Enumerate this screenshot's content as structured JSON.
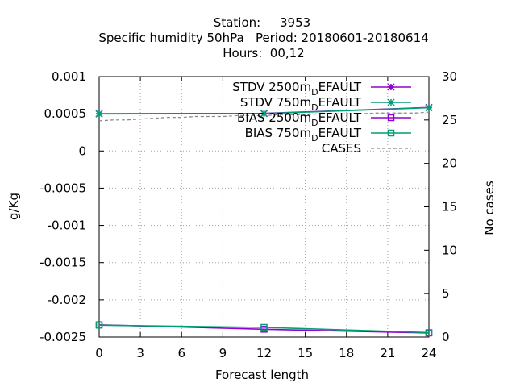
{
  "chart_data": {
    "type": "line",
    "title_lines": [
      "Station:     3953",
      "Specific humidity 50hPa   Period: 20180601-20180614",
      "Hours:  00,12"
    ],
    "xlabel": "Forecast length",
    "ylabel": "g/Kg",
    "y2label": "No cases",
    "xlim": [
      0,
      24
    ],
    "ylim": [
      -0.0025,
      0.001
    ],
    "y2lim": [
      0,
      30
    ],
    "xticks": [
      "0",
      "3",
      "6",
      "9",
      "12",
      "15",
      "18",
      "21",
      "24"
    ],
    "yticks": [
      "0.001",
      "0.0005",
      "0",
      "-0.0005",
      "-0.001",
      "-0.0015",
      "-0.002",
      "-0.0025"
    ],
    "y2ticks": [
      "30",
      "25",
      "20",
      "15",
      "10",
      "5",
      "0"
    ],
    "grid": true,
    "legend_position": "top-right",
    "series": [
      {
        "name": "STDV 2500m_DEFAULT",
        "legend_main": "STDV 2500m",
        "legend_sub": "D",
        "legend_rest": "EFAULT",
        "color": "#9400d3",
        "marker": "star",
        "axis": "y",
        "x": [
          0,
          12,
          24
        ],
        "y": [
          0.000501,
          0.000505,
          0.000585
        ]
      },
      {
        "name": "STDV 750m_DEFAULT",
        "legend_main": "STDV 750m",
        "legend_sub": "D",
        "legend_rest": "EFAULT",
        "color": "#009e73",
        "marker": "star",
        "axis": "y",
        "x": [
          0,
          12,
          24
        ],
        "y": [
          0.000498,
          0.000502,
          0.000582
        ]
      },
      {
        "name": "BIAS 2500m_DEFAULT",
        "legend_main": "BIAS 2500m",
        "legend_sub": "D",
        "legend_rest": "EFAULT",
        "color": "#9400d3",
        "marker": "square",
        "axis": "y",
        "x": [
          0,
          12,
          24
        ],
        "y": [
          -0.002335,
          -0.002395,
          -0.002445
        ]
      },
      {
        "name": "BIAS 750m_DEFAULT",
        "legend_main": "BIAS 750m",
        "legend_sub": "D",
        "legend_rest": "EFAULT",
        "color": "#009e73",
        "marker": "square",
        "axis": "y",
        "x": [
          0,
          12,
          24
        ],
        "y": [
          -0.00234,
          -0.00237,
          -0.00244
        ]
      },
      {
        "name": "CASES",
        "legend_main": "CASES",
        "legend_sub": "",
        "legend_rest": "",
        "color": "#888888",
        "marker": "none",
        "dashed": true,
        "axis": "y2",
        "x": [
          0,
          1,
          2,
          3,
          4,
          5,
          6,
          7,
          8,
          9,
          10,
          11,
          12,
          13,
          14,
          15,
          16,
          17,
          18,
          19,
          20,
          21,
          22,
          23,
          24
        ],
        "y": [
          24.9,
          25.0,
          25.0,
          25.1,
          25.2,
          25.3,
          25.3,
          25.4,
          25.4,
          25.4,
          25.5,
          25.5,
          25.5,
          25.6,
          25.6,
          25.6,
          25.7,
          25.7,
          25.7,
          25.7,
          25.8,
          25.8,
          25.8,
          25.8,
          25.9
        ]
      }
    ]
  }
}
